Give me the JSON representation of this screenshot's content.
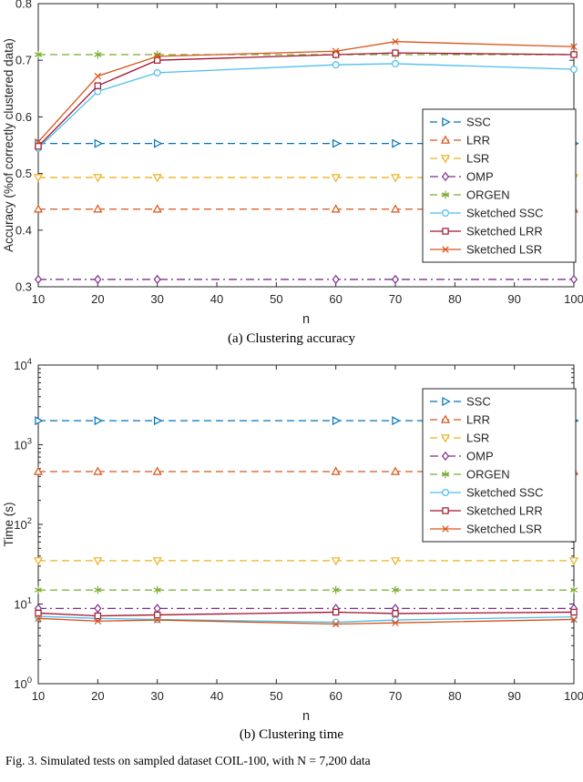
{
  "figure": {
    "caption_a": "(a) Clustering accuracy",
    "caption_b": "(b) Clustering time",
    "caption": "Fig. 3.   Simulated tests on sampled dataset COIL-100, with N = 7,200 data"
  },
  "chart_data": [
    {
      "type": "line",
      "title": "",
      "xlabel": "n",
      "ylabel": "Accuracy (%of correctly clustered data)",
      "x": [
        10,
        20,
        30,
        60,
        70,
        100
      ],
      "xlim": [
        10,
        100
      ],
      "xticks": [
        10,
        20,
        30,
        40,
        50,
        60,
        70,
        80,
        90,
        100
      ],
      "ylim": [
        0.3,
        0.8
      ],
      "yticks": [
        0.3,
        0.4,
        0.5,
        0.6,
        0.7,
        0.8
      ],
      "yscale": "linear",
      "grid": false,
      "legend_position": "right",
      "series": [
        {
          "name": "SSC",
          "color": "#0072BD",
          "line": "dashed",
          "marker": "triangle-right",
          "values": [
            0.553,
            0.553,
            0.553,
            0.553,
            0.553,
            0.553
          ]
        },
        {
          "name": "LRR",
          "color": "#D95319",
          "line": "dashed",
          "marker": "triangle-up",
          "values": [
            0.437,
            0.437,
            0.437,
            0.437,
            0.437,
            0.437
          ]
        },
        {
          "name": "LSR",
          "color": "#EDB120",
          "line": "dashed",
          "marker": "triangle-down",
          "values": [
            0.493,
            0.493,
            0.493,
            0.493,
            0.493,
            0.493
          ]
        },
        {
          "name": "OMP",
          "color": "#7E2F8E",
          "line": "dashdot",
          "marker": "diamond",
          "values": [
            0.313,
            0.313,
            0.313,
            0.313,
            0.313,
            0.313
          ]
        },
        {
          "name": "ORGEN",
          "color": "#77AC30",
          "line": "dashed",
          "marker": "asterisk",
          "values": [
            0.71,
            0.71,
            0.71,
            0.71,
            0.71,
            0.71
          ]
        },
        {
          "name": "Sketched SSC",
          "color": "#4DBEEE",
          "line": "solid",
          "marker": "circle",
          "values": [
            0.545,
            0.645,
            0.678,
            0.692,
            0.694,
            0.684
          ]
        },
        {
          "name": "Sketched LRR",
          "color": "#A2142F",
          "line": "solid",
          "marker": "square",
          "values": [
            0.548,
            0.655,
            0.7,
            0.71,
            0.713,
            0.71
          ]
        },
        {
          "name": "Sketched LSR",
          "color": "#D95319",
          "line": "solid",
          "marker": "x",
          "values": [
            0.556,
            0.672,
            0.707,
            0.716,
            0.733,
            0.724
          ]
        }
      ]
    },
    {
      "type": "line",
      "title": "",
      "xlabel": "n",
      "ylabel": "Time (s)",
      "x": [
        10,
        20,
        30,
        60,
        70,
        100
      ],
      "xlim": [
        10,
        100
      ],
      "xticks": [
        10,
        20,
        30,
        40,
        50,
        60,
        70,
        80,
        90,
        100
      ],
      "ylim": [
        1,
        10000
      ],
      "yticks": [
        1,
        10,
        100,
        1000,
        10000
      ],
      "yscale": "log",
      "grid": false,
      "legend_position": "right",
      "series": [
        {
          "name": "SSC",
          "color": "#0072BD",
          "line": "dashed",
          "marker": "triangle-right",
          "values": [
            2000,
            2000,
            2000,
            2000,
            2000,
            2000
          ]
        },
        {
          "name": "LRR",
          "color": "#D95319",
          "line": "dashed",
          "marker": "triangle-up",
          "values": [
            460,
            460,
            460,
            460,
            460,
            460
          ]
        },
        {
          "name": "LSR",
          "color": "#EDB120",
          "line": "dashed",
          "marker": "triangle-down",
          "values": [
            35,
            35,
            35,
            35,
            35,
            35
          ]
        },
        {
          "name": "OMP",
          "color": "#7E2F8E",
          "line": "dashdot",
          "marker": "diamond",
          "values": [
            8.8,
            8.8,
            8.8,
            8.8,
            8.8,
            8.8
          ]
        },
        {
          "name": "ORGEN",
          "color": "#77AC30",
          "line": "dashed",
          "marker": "asterisk",
          "values": [
            15,
            15,
            15,
            15,
            15,
            15
          ]
        },
        {
          "name": "Sketched SSC",
          "color": "#4DBEEE",
          "line": "solid",
          "marker": "circle",
          "values": [
            7.0,
            6.6,
            6.4,
            5.9,
            6.3,
            6.9
          ]
        },
        {
          "name": "Sketched LRR",
          "color": "#A2142F",
          "line": "solid",
          "marker": "square",
          "values": [
            7.7,
            7.1,
            7.3,
            7.9,
            7.6,
            7.9
          ]
        },
        {
          "name": "Sketched LSR",
          "color": "#D95319",
          "line": "solid",
          "marker": "x",
          "values": [
            6.6,
            6.1,
            6.3,
            5.6,
            5.8,
            6.4
          ]
        }
      ]
    }
  ]
}
